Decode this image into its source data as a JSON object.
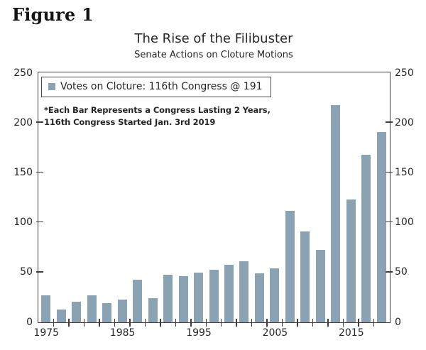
{
  "figure_label": "Figure 1",
  "chart": {
    "title": "The Rise of the Filibuster",
    "subtitle": "Senate Actions on Cloture Motions",
    "legend_label": "Votes on Cloture: 116th Congress @ 191",
    "note_line1": "*Each Bar Represents a Congress Lasting 2 Years,",
    "note_line2": "116th Congress Started Jan. 3rd 2019"
  },
  "colors": {
    "bar": "#8BA2B2",
    "axis": "#3D3D3D",
    "text": "#262626"
  },
  "chart_data": {
    "type": "bar",
    "title": "The Rise of the Filibuster",
    "subtitle": "Senate Actions on Cloture Motions",
    "legend": [
      "Votes on Cloture: 116th Congress @ 191"
    ],
    "legend_position": "top-left-inside",
    "annotation": "*Each Bar Represents a Congress Lasting 2 Years, 116th Congress Started Jan. 3rd 2019",
    "x": [
      1975,
      1977,
      1979,
      1981,
      1983,
      1985,
      1987,
      1989,
      1991,
      1993,
      1995,
      1997,
      1999,
      2001,
      2003,
      2005,
      2007,
      2009,
      2011,
      2013,
      2015,
      2017,
      2019
    ],
    "values": [
      27,
      13,
      21,
      27,
      19,
      23,
      43,
      24,
      48,
      46,
      50,
      53,
      58,
      61,
      49,
      54,
      112,
      91,
      73,
      218,
      123,
      168,
      191
    ],
    "xlabel": "",
    "ylabel": "",
    "ylim": [
      0,
      250
    ],
    "yticks": [
      0,
      50,
      100,
      150,
      200,
      250
    ],
    "xticks_labeled": [
      1975,
      1985,
      1995,
      2005,
      2015
    ],
    "grid": false,
    "dual_y_axis": true,
    "bar_color": "#8BA2B2"
  }
}
